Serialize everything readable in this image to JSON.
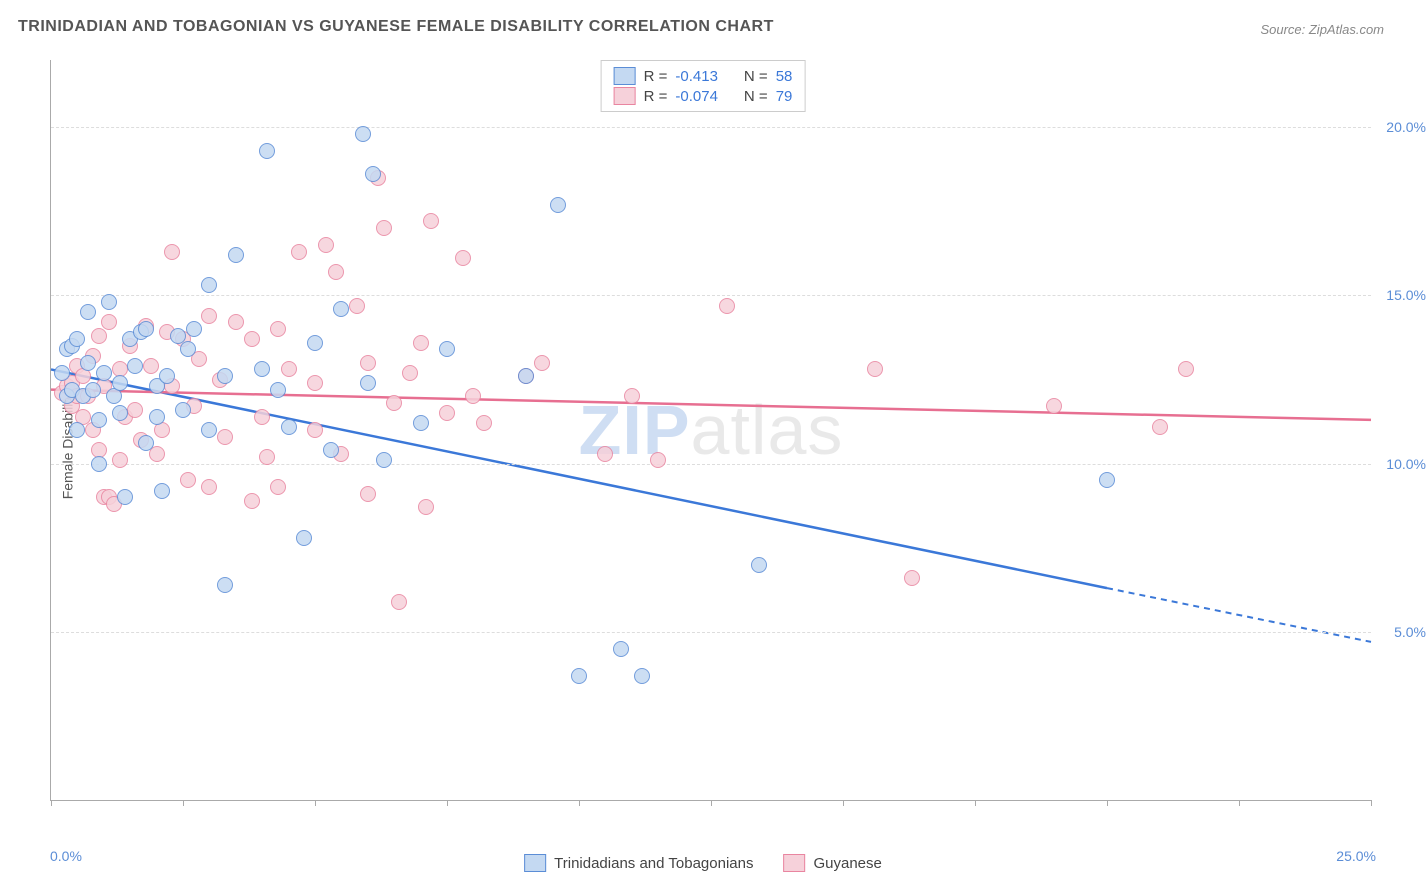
{
  "title": "TRINIDADIAN AND TOBAGONIAN VS GUYANESE FEMALE DISABILITY CORRELATION CHART",
  "source": "Source: ZipAtlas.com",
  "ylabel": "Female Disability",
  "watermark_a": "ZIP",
  "watermark_b": "atlas",
  "chart": {
    "type": "scatter",
    "xlim": [
      0,
      25
    ],
    "ylim": [
      0,
      22
    ],
    "x_axis_label_left": "0.0%",
    "x_axis_label_right": "25.0%",
    "xtick_positions": [
      0,
      2.5,
      5,
      7.5,
      10,
      12.5,
      15,
      17.5,
      20,
      22.5,
      25
    ],
    "y_gridlines": [
      5,
      10,
      15,
      20
    ],
    "y_gridline_labels": [
      "5.0%",
      "10.0%",
      "15.0%",
      "20.0%"
    ],
    "background_color": "#ffffff",
    "grid_color": "#dddddd",
    "axis_color": "#aaaaaa",
    "axis_label_color": "#5b8dd6",
    "marker_size": 16,
    "series": [
      {
        "name": "Trinidadians and Tobagonians",
        "fill_color": "#c4d9f2",
        "stroke_color": "#5b8dd6",
        "line_color": "#3b78d8",
        "R": "-0.413",
        "N": "58",
        "trendline": {
          "x1": 0,
          "y1": 12.8,
          "x2_solid": 20,
          "y2_solid": 6.3,
          "x2_dash": 25,
          "y2_dash": 4.7
        },
        "points": [
          [
            0.2,
            12.7
          ],
          [
            0.3,
            12.0
          ],
          [
            0.3,
            13.4
          ],
          [
            0.4,
            12.2
          ],
          [
            0.4,
            13.5
          ],
          [
            0.5,
            13.7
          ],
          [
            0.5,
            11.0
          ],
          [
            0.6,
            12.0
          ],
          [
            0.7,
            13.0
          ],
          [
            0.7,
            14.5
          ],
          [
            0.8,
            12.2
          ],
          [
            0.9,
            11.3
          ],
          [
            0.9,
            10.0
          ],
          [
            1.0,
            12.7
          ],
          [
            1.1,
            14.8
          ],
          [
            1.2,
            12.0
          ],
          [
            1.3,
            12.4
          ],
          [
            1.3,
            11.5
          ],
          [
            1.4,
            9.0
          ],
          [
            1.5,
            13.7
          ],
          [
            1.6,
            12.9
          ],
          [
            1.7,
            13.9
          ],
          [
            1.8,
            14.0
          ],
          [
            1.8,
            10.6
          ],
          [
            2.0,
            11.4
          ],
          [
            2.0,
            12.3
          ],
          [
            2.1,
            9.2
          ],
          [
            2.2,
            12.6
          ],
          [
            2.4,
            13.8
          ],
          [
            2.5,
            11.6
          ],
          [
            2.6,
            13.4
          ],
          [
            2.7,
            14.0
          ],
          [
            3.0,
            11.0
          ],
          [
            3.0,
            15.3
          ],
          [
            3.3,
            12.6
          ],
          [
            3.3,
            6.4
          ],
          [
            3.5,
            16.2
          ],
          [
            4.0,
            12.8
          ],
          [
            4.1,
            19.3
          ],
          [
            4.3,
            12.2
          ],
          [
            4.5,
            11.1
          ],
          [
            4.8,
            7.8
          ],
          [
            5.0,
            13.6
          ],
          [
            5.3,
            10.4
          ],
          [
            5.5,
            14.6
          ],
          [
            5.9,
            19.8
          ],
          [
            6.0,
            12.4
          ],
          [
            6.1,
            18.6
          ],
          [
            6.3,
            10.1
          ],
          [
            7.0,
            11.2
          ],
          [
            7.5,
            13.4
          ],
          [
            9.0,
            12.6
          ],
          [
            9.6,
            17.7
          ],
          [
            10.0,
            3.7
          ],
          [
            10.8,
            4.5
          ],
          [
            11.2,
            3.7
          ],
          [
            13.4,
            7.0
          ],
          [
            20.0,
            9.5
          ]
        ]
      },
      {
        "name": "Guyanese",
        "fill_color": "#f6d1da",
        "stroke_color": "#e985a0",
        "line_color": "#e76f91",
        "R": "-0.074",
        "N": "79",
        "trendline": {
          "x1": 0,
          "y1": 12.2,
          "x2_solid": 25,
          "y2_solid": 11.3,
          "x2_dash": 25,
          "y2_dash": 11.3
        },
        "points": [
          [
            0.2,
            12.1
          ],
          [
            0.3,
            12.3
          ],
          [
            0.4,
            11.7
          ],
          [
            0.4,
            12.4
          ],
          [
            0.5,
            12.0
          ],
          [
            0.5,
            12.9
          ],
          [
            0.6,
            11.4
          ],
          [
            0.6,
            12.6
          ],
          [
            0.7,
            12.0
          ],
          [
            0.8,
            11.0
          ],
          [
            0.8,
            13.2
          ],
          [
            0.9,
            10.4
          ],
          [
            0.9,
            13.8
          ],
          [
            1.0,
            12.3
          ],
          [
            1.0,
            9.0
          ],
          [
            1.1,
            9.0
          ],
          [
            1.1,
            14.2
          ],
          [
            1.2,
            8.8
          ],
          [
            1.3,
            10.1
          ],
          [
            1.3,
            12.8
          ],
          [
            1.4,
            11.4
          ],
          [
            1.5,
            13.5
          ],
          [
            1.6,
            11.6
          ],
          [
            1.7,
            10.7
          ],
          [
            1.8,
            14.1
          ],
          [
            1.9,
            12.9
          ],
          [
            2.0,
            10.3
          ],
          [
            2.1,
            11.0
          ],
          [
            2.2,
            13.9
          ],
          [
            2.3,
            12.3
          ],
          [
            2.3,
            16.3
          ],
          [
            2.5,
            13.7
          ],
          [
            2.6,
            9.5
          ],
          [
            2.7,
            11.7
          ],
          [
            2.8,
            13.1
          ],
          [
            3.0,
            14.4
          ],
          [
            3.0,
            9.3
          ],
          [
            3.2,
            12.5
          ],
          [
            3.3,
            10.8
          ],
          [
            3.5,
            14.2
          ],
          [
            3.8,
            8.9
          ],
          [
            3.8,
            13.7
          ],
          [
            4.0,
            11.4
          ],
          [
            4.1,
            10.2
          ],
          [
            4.3,
            9.3
          ],
          [
            4.3,
            14.0
          ],
          [
            4.5,
            12.8
          ],
          [
            4.7,
            16.3
          ],
          [
            5.0,
            12.4
          ],
          [
            5.0,
            11.0
          ],
          [
            5.2,
            16.5
          ],
          [
            5.4,
            15.7
          ],
          [
            5.5,
            10.3
          ],
          [
            5.8,
            14.7
          ],
          [
            6.0,
            9.1
          ],
          [
            6.0,
            13.0
          ],
          [
            6.2,
            18.5
          ],
          [
            6.3,
            17.0
          ],
          [
            6.5,
            11.8
          ],
          [
            6.6,
            5.9
          ],
          [
            6.8,
            12.7
          ],
          [
            7.0,
            13.6
          ],
          [
            7.1,
            8.7
          ],
          [
            7.2,
            17.2
          ],
          [
            7.5,
            11.5
          ],
          [
            7.8,
            16.1
          ],
          [
            8.0,
            12.0
          ],
          [
            8.2,
            11.2
          ],
          [
            9.0,
            12.6
          ],
          [
            9.3,
            13.0
          ],
          [
            10.5,
            10.3
          ],
          [
            11.0,
            12.0
          ],
          [
            11.5,
            10.1
          ],
          [
            12.8,
            14.7
          ],
          [
            15.6,
            12.8
          ],
          [
            16.3,
            6.6
          ],
          [
            19.0,
            11.7
          ],
          [
            21.0,
            11.1
          ],
          [
            21.5,
            12.8
          ]
        ]
      }
    ]
  },
  "legend_top": {
    "r_label": "R =",
    "n_label": "N ="
  },
  "legend_bottom": {
    "series1": "Trinidadians and Tobagonians",
    "series2": "Guyanese"
  }
}
